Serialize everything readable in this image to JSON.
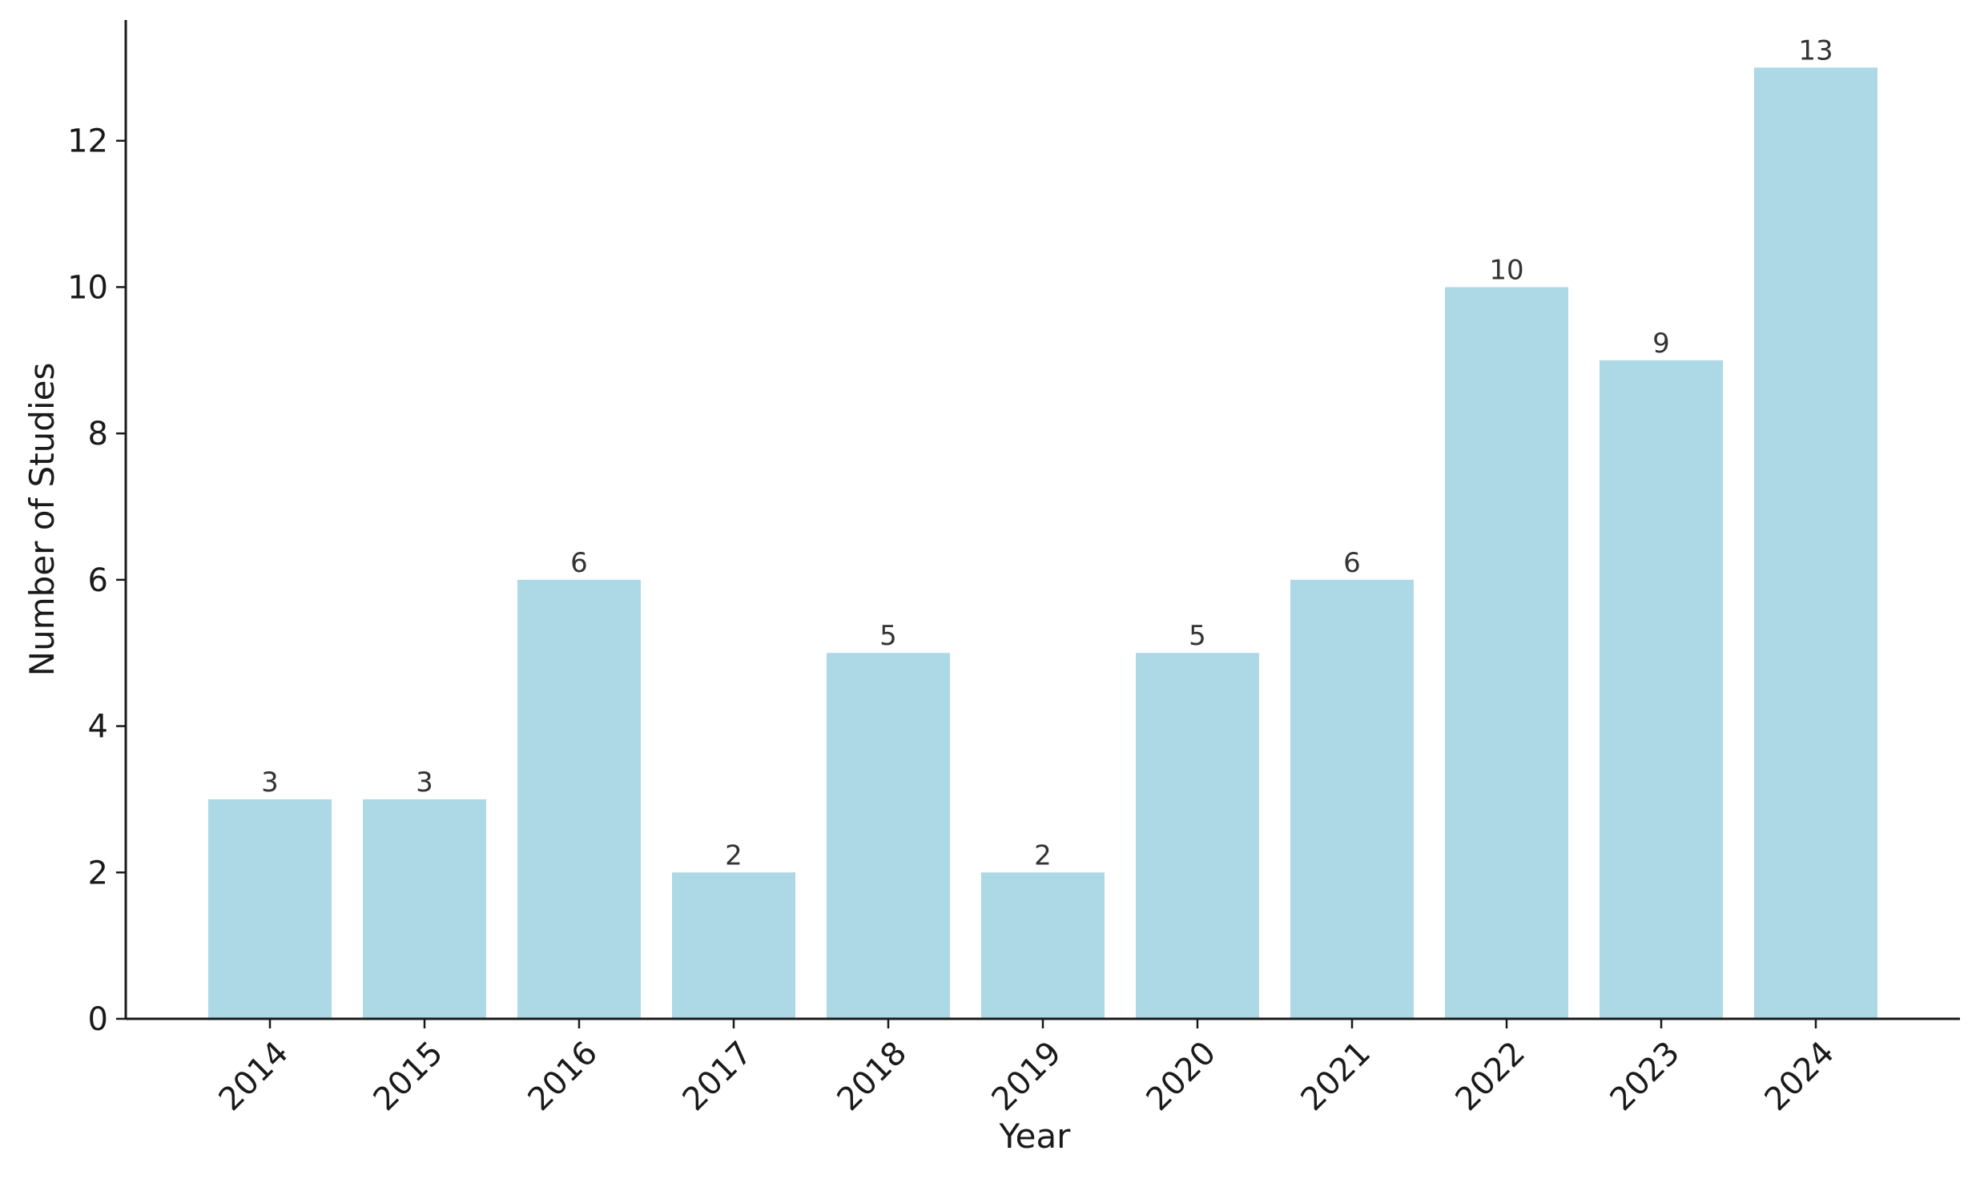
{
  "colors": {
    "bar": "#add8e6",
    "axis": "#1a1a1a",
    "bar_label": "#333333",
    "background": "#ffffff"
  },
  "chart_data": {
    "type": "bar",
    "title": "",
    "xlabel": "Year",
    "ylabel": "Number of Studies",
    "categories": [
      "2014",
      "2015",
      "2016",
      "2017",
      "2018",
      "2019",
      "2020",
      "2021",
      "2022",
      "2023",
      "2024"
    ],
    "values": [
      3,
      3,
      6,
      2,
      5,
      2,
      5,
      6,
      10,
      9,
      13
    ],
    "ylim": [
      0,
      13.65
    ],
    "yticks": [
      "0",
      "2",
      "4",
      "6",
      "8",
      "10",
      "12"
    ],
    "grid": false,
    "legend": null
  }
}
